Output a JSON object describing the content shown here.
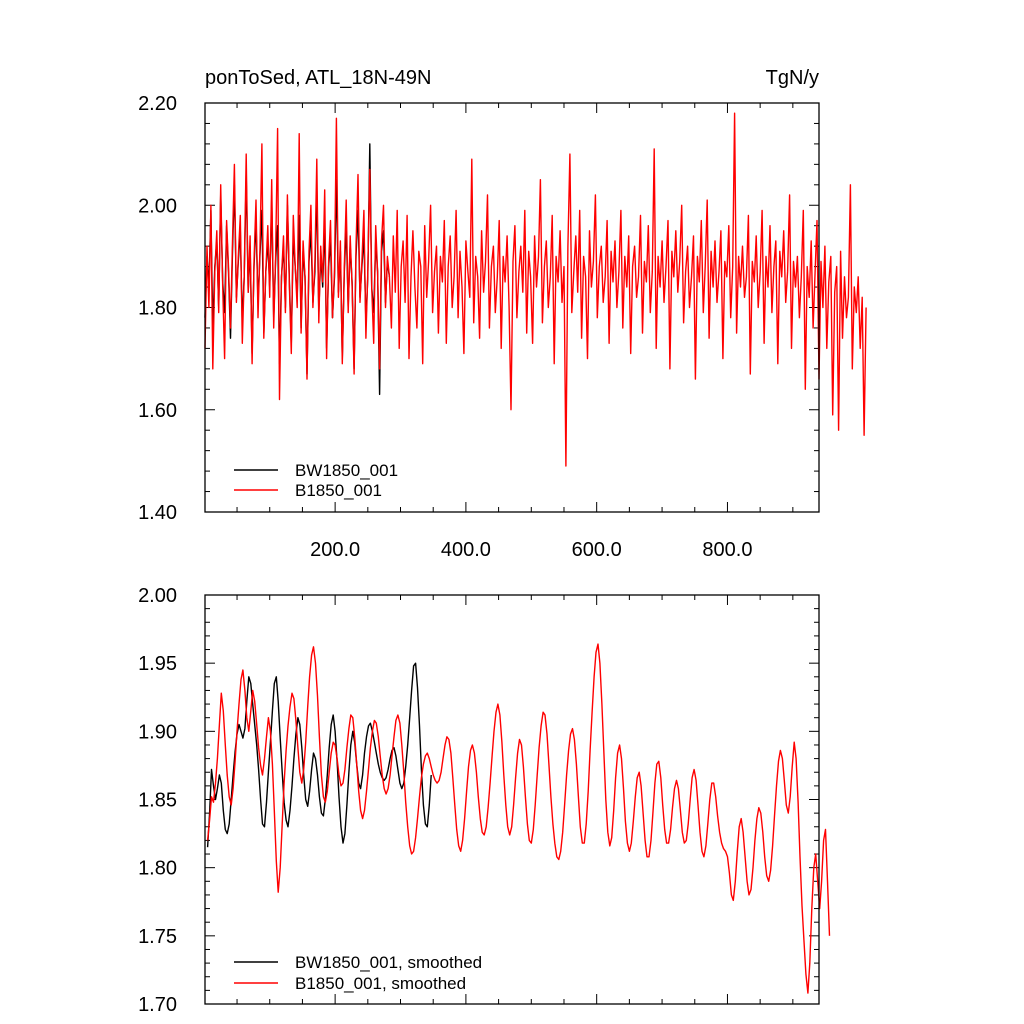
{
  "chart_data": [
    {
      "type": "line",
      "title_left": "ponToSed, ATL_18N-49N",
      "title_right": "TgN/y",
      "xlim": [
        1,
        940
      ],
      "ylim": [
        1.4,
        2.2
      ],
      "xticks": [
        200,
        400,
        600,
        800
      ],
      "xtick_labels": [
        "200.0",
        "400.0",
        "600.0",
        "800.0"
      ],
      "yticks": [
        1.4,
        1.6,
        1.8,
        2.0,
        2.2
      ],
      "ytick_labels": [
        "1.40",
        "1.60",
        "1.80",
        "2.00",
        "2.20"
      ],
      "legend_position": "bottom-left",
      "series": [
        {
          "name": "BW1850_001",
          "color": "#000000",
          "x_start": 1,
          "x_step": 3,
          "values": [
            1.78,
            1.9,
            1.84,
            1.99,
            1.76,
            1.88,
            1.93,
            1.8,
            2.02,
            1.85,
            1.79,
            1.96,
            1.87,
            1.74,
            1.91,
            2.04,
            1.82,
            1.89,
            1.95,
            1.77,
            1.86,
            2.06,
            1.83,
            1.92,
            1.71,
            1.88,
            1.97,
            1.81,
            1.9,
            1.99,
            1.75,
            1.87,
            1.93,
            1.84,
            2.01,
            1.78,
            1.89,
            1.96,
            1.69,
            1.86,
            1.92,
            1.8,
            2.0,
            1.85,
            1.73,
            1.94,
            1.88,
            1.82,
            1.98,
            1.76,
            1.91,
            1.86,
            1.67,
            1.89,
            1.95,
            1.81,
            1.87,
            2.03,
            1.79,
            1.9,
            1.84,
            1.97,
            1.72,
            1.88,
            1.93,
            1.78,
            1.86,
            2.05,
            1.83,
            1.91,
            1.7,
            1.87,
            1.96,
            1.8,
            1.92,
            1.85,
            1.68,
            1.9,
            1.99,
            1.82,
            1.88,
            1.94,
            1.77,
            1.86,
            2.12,
            1.84,
            1.79,
            1.93,
            1.87,
            1.63,
            1.91,
            1.95,
            1.81,
            1.89,
            1.86
          ]
        },
        {
          "name": "B1850_001",
          "color": "#ff0000",
          "x_start": 1,
          "x_step": 3,
          "values": [
            1.72,
            1.92,
            1.8,
            2.0,
            1.68,
            1.87,
            1.95,
            1.79,
            2.04,
            1.84,
            1.7,
            1.97,
            1.88,
            1.76,
            1.93,
            2.08,
            1.81,
            1.9,
            1.98,
            1.73,
            1.86,
            2.1,
            1.83,
            1.94,
            1.69,
            1.89,
            2.01,
            1.78,
            1.91,
            2.12,
            1.74,
            1.87,
            1.96,
            1.82,
            2.05,
            1.76,
            1.9,
            2.15,
            1.62,
            1.86,
            1.94,
            1.79,
            2.02,
            1.84,
            1.71,
            1.98,
            1.88,
            1.8,
            2.14,
            1.75,
            1.93,
            1.86,
            1.66,
            1.91,
            2.0,
            1.8,
            1.89,
            2.09,
            1.77,
            1.92,
            1.85,
            2.03,
            1.7,
            1.89,
            1.97,
            1.78,
            1.87,
            2.17,
            1.82,
            1.93,
            1.69,
            1.88,
            2.01,
            1.79,
            1.94,
            1.84,
            1.67,
            1.92,
            2.06,
            1.81,
            1.89,
            1.99,
            1.74,
            1.87,
            2.07,
            1.84,
            1.73,
            1.96,
            1.87,
            1.68,
            1.93,
            2.0,
            1.8,
            1.9,
            1.86,
            1.76,
            1.94,
            1.83,
            1.99,
            1.72,
            1.88,
            1.93,
            1.81,
            1.98,
            1.7,
            1.86,
            1.95,
            1.84,
            1.76,
            1.91,
            1.88,
            1.69,
            1.96,
            1.82,
            1.89,
            2.0,
            1.79,
            1.87,
            1.92,
            1.75,
            1.9,
            1.85,
            1.97,
            1.73,
            1.88,
            1.94,
            1.8,
            1.86,
            1.99,
            1.78,
            1.91,
            1.84,
            1.71,
            1.93,
            1.87,
            1.82,
            2.09,
            1.77,
            1.9,
            1.86,
            1.74,
            1.95,
            1.83,
            1.89,
            2.02,
            1.76,
            1.88,
            1.92,
            1.79,
            1.86,
            1.97,
            1.72,
            1.9,
            1.85,
            1.94,
            1.8,
            1.6,
            1.89,
            1.96,
            1.78,
            1.87,
            1.92,
            1.83,
            1.99,
            1.75,
            1.91,
            1.86,
            1.73,
            1.94,
            1.84,
            1.9,
            2.05,
            1.77,
            1.88,
            1.93,
            1.8,
            1.86,
            1.98,
            1.69,
            1.9,
            1.85,
            1.95,
            1.81,
            1.88,
            1.49,
            1.92,
            2.1,
            1.79,
            1.87,
            1.94,
            1.83,
            1.99,
            1.74,
            1.9,
            1.86,
            1.7,
            1.95,
            1.84,
            1.89,
            2.02,
            1.78,
            1.88,
            1.92,
            1.81,
            1.86,
            1.97,
            1.73,
            1.91,
            1.85,
            1.93,
            1.8,
            1.87,
            1.99,
            1.76,
            1.9,
            1.84,
            1.94,
            1.71,
            1.88,
            1.92,
            1.82,
            1.86,
            1.98,
            1.75,
            1.89,
            1.85,
            1.96,
            1.79,
            1.87,
            2.11,
            1.72,
            1.9,
            1.84,
            1.93,
            1.81,
            1.88,
            1.97,
            1.68,
            1.91,
            1.86,
            1.95,
            1.83,
            1.89,
            2.0,
            1.77,
            1.87,
            1.92,
            1.8,
            1.86,
            1.94,
            1.66,
            1.9,
            1.85,
            1.97,
            1.79,
            1.88,
            2.01,
            1.74,
            1.91,
            1.84,
            1.93,
            1.81,
            1.87,
            1.95,
            1.7,
            1.89,
            1.86,
            1.96,
            1.78,
            1.88,
            2.18,
            1.75,
            1.9,
            1.84,
            1.92,
            1.82,
            1.86,
            1.98,
            1.67,
            1.89,
            1.85,
            1.94,
            1.8,
            1.87,
            1.99,
            1.73,
            1.9,
            1.84,
            1.96,
            1.79,
            1.88,
            1.93,
            1.69,
            1.91,
            1.86,
            1.95,
            1.81,
            1.87,
            2.02,
            1.72,
            1.89,
            1.84,
            1.9,
            1.78,
            1.86,
            1.99,
            1.64,
            1.88,
            1.82,
            1.93,
            1.76,
            1.87,
            1.97,
            1.66,
            1.89,
            1.8,
            1.92,
            1.72,
            1.85,
            1.9,
            1.59,
            1.83,
            1.88,
            1.56,
            1.91,
            1.74,
            1.86,
            1.78,
            1.82,
            2.04,
            1.68,
            1.84,
            1.79,
            1.86,
            1.72,
            1.82,
            1.55,
            1.8
          ]
        }
      ]
    },
    {
      "type": "line",
      "xlim": [
        1,
        940
      ],
      "ylim": [
        1.7,
        2.0
      ],
      "xticks": [
        200,
        400,
        600,
        800
      ],
      "yticks": [
        1.7,
        1.75,
        1.8,
        1.85,
        1.9,
        1.95,
        2.0
      ],
      "ytick_labels": [
        "1.70",
        "1.75",
        "1.80",
        "1.85",
        "1.90",
        "1.95",
        "2.00"
      ],
      "legend_position": "bottom-left",
      "series": [
        {
          "name": "BW1850_001, smoothed",
          "color": "#000000",
          "x_start": 5,
          "x_step": 3,
          "values": [
            1.815,
            1.84,
            1.872,
            1.86,
            1.85,
            1.858,
            1.868,
            1.862,
            1.842,
            1.828,
            1.825,
            1.832,
            1.85,
            1.868,
            1.885,
            1.898,
            1.905,
            1.9,
            1.895,
            1.902,
            1.922,
            1.94,
            1.935,
            1.92,
            1.905,
            1.89,
            1.872,
            1.85,
            1.832,
            1.83,
            1.848,
            1.87,
            1.892,
            1.915,
            1.935,
            1.94,
            1.922,
            1.895,
            1.87,
            1.848,
            1.835,
            1.83,
            1.842,
            1.86,
            1.88,
            1.898,
            1.91,
            1.905,
            1.888,
            1.868,
            1.85,
            1.845,
            1.856,
            1.872,
            1.884,
            1.88,
            1.868,
            1.852,
            1.84,
            1.838,
            1.85,
            1.868,
            1.888,
            1.905,
            1.912,
            1.9,
            1.878,
            1.852,
            1.83,
            1.818,
            1.825,
            1.846,
            1.87,
            1.89,
            1.9,
            1.892,
            1.876,
            1.862,
            1.858,
            1.868,
            1.884,
            1.896,
            1.904,
            1.906,
            1.9,
            1.892,
            1.884,
            1.876,
            1.87,
            1.866,
            1.864,
            1.866,
            1.872,
            1.88,
            1.886,
            1.888,
            1.882,
            1.872,
            1.862,
            1.858,
            1.862,
            1.874,
            1.89,
            1.91,
            1.93,
            1.948,
            1.95,
            1.932,
            1.904,
            1.872,
            1.846,
            1.832,
            1.83,
            1.846,
            1.868
          ]
        },
        {
          "name": "B1850_001, smoothed",
          "color": "#ff0000",
          "x_start": 5,
          "x_step": 3,
          "values": [
            1.82,
            1.835,
            1.852,
            1.848,
            1.862,
            1.88,
            1.905,
            1.928,
            1.915,
            1.89,
            1.868,
            1.852,
            1.846,
            1.858,
            1.878,
            1.9,
            1.92,
            1.938,
            1.945,
            1.93,
            1.91,
            1.9,
            1.915,
            1.93,
            1.922,
            1.905,
            1.888,
            1.875,
            1.868,
            1.88,
            1.896,
            1.91,
            1.9,
            1.876,
            1.842,
            1.805,
            1.782,
            1.8,
            1.832,
            1.862,
            1.886,
            1.904,
            1.918,
            1.928,
            1.924,
            1.908,
            1.888,
            1.87,
            1.862,
            1.872,
            1.892,
            1.918,
            1.94,
            1.956,
            1.962,
            1.95,
            1.926,
            1.896,
            1.868,
            1.852,
            1.848,
            1.856,
            1.87,
            1.884,
            1.892,
            1.89,
            1.88,
            1.868,
            1.86,
            1.862,
            1.872,
            1.888,
            1.902,
            1.912,
            1.91,
            1.896,
            1.876,
            1.856,
            1.842,
            1.836,
            1.842,
            1.856,
            1.872,
            1.888,
            1.9,
            1.908,
            1.906,
            1.896,
            1.882,
            1.868,
            1.858,
            1.854,
            1.858,
            1.868,
            1.882,
            1.896,
            1.908,
            1.912,
            1.906,
            1.89,
            1.87,
            1.848,
            1.83,
            1.816,
            1.81,
            1.812,
            1.822,
            1.836,
            1.852,
            1.866,
            1.876,
            1.882,
            1.884,
            1.88,
            1.874,
            1.868,
            1.864,
            1.862,
            1.864,
            1.87,
            1.88,
            1.89,
            1.896,
            1.894,
            1.884,
            1.866,
            1.846,
            1.828,
            1.816,
            1.812,
            1.82,
            1.836,
            1.856,
            1.874,
            1.886,
            1.89,
            1.884,
            1.87,
            1.852,
            1.836,
            1.826,
            1.824,
            1.83,
            1.844,
            1.862,
            1.882,
            1.9,
            1.914,
            1.92,
            1.912,
            1.892,
            1.868,
            1.846,
            1.83,
            1.824,
            1.83,
            1.846,
            1.866,
            1.884,
            1.894,
            1.89,
            1.874,
            1.852,
            1.832,
            1.82,
            1.818,
            1.828,
            1.846,
            1.868,
            1.888,
            1.904,
            1.914,
            1.912,
            1.898,
            1.876,
            1.852,
            1.832,
            1.818,
            1.808,
            1.806,
            1.812,
            1.826,
            1.846,
            1.868,
            1.886,
            1.898,
            1.902,
            1.894,
            1.876,
            1.852,
            1.83,
            1.818,
            1.818,
            1.832,
            1.856,
            1.886,
            1.914,
            1.94,
            1.958,
            1.964,
            1.95,
            1.92,
            1.884,
            1.85,
            1.826,
            1.816,
            1.822,
            1.842,
            1.866,
            1.884,
            1.89,
            1.88,
            1.858,
            1.834,
            1.818,
            1.812,
            1.818,
            1.834,
            1.852,
            1.866,
            1.87,
            1.86,
            1.84,
            1.82,
            1.808,
            1.808,
            1.82,
            1.84,
            1.862,
            1.876,
            1.878,
            1.866,
            1.846,
            1.828,
            1.818,
            1.818,
            1.828,
            1.844,
            1.858,
            1.864,
            1.858,
            1.842,
            1.826,
            1.818,
            1.82,
            1.832,
            1.85,
            1.866,
            1.872,
            1.864,
            1.846,
            1.826,
            1.812,
            1.808,
            1.816,
            1.832,
            1.85,
            1.862,
            1.862,
            1.852,
            1.838,
            1.826,
            1.818,
            1.814,
            1.812,
            1.808,
            1.796,
            1.78,
            1.776,
            1.79,
            1.812,
            1.83,
            1.836,
            1.826,
            1.808,
            1.79,
            1.78,
            1.784,
            1.8,
            1.82,
            1.836,
            1.844,
            1.84,
            1.826,
            1.808,
            1.794,
            1.79,
            1.798,
            1.816,
            1.838,
            1.86,
            1.878,
            1.886,
            1.88,
            1.864,
            1.846,
            1.84,
            1.852,
            1.874,
            1.892,
            1.88,
            1.848,
            1.808,
            1.772,
            1.746,
            1.722,
            1.708,
            1.73,
            1.77,
            1.8,
            1.81,
            1.79,
            1.77,
            1.79,
            1.82,
            1.828,
            1.79,
            1.75
          ]
        }
      ]
    }
  ],
  "top_chart": {
    "title_left": "ponToSed, ATL_18N-49N",
    "title_right": "TgN/y",
    "legend": [
      "BW1850_001",
      "B1850_001"
    ]
  },
  "bottom_chart": {
    "legend": [
      "BW1850_001, smoothed",
      "B1850_001, smoothed"
    ]
  }
}
